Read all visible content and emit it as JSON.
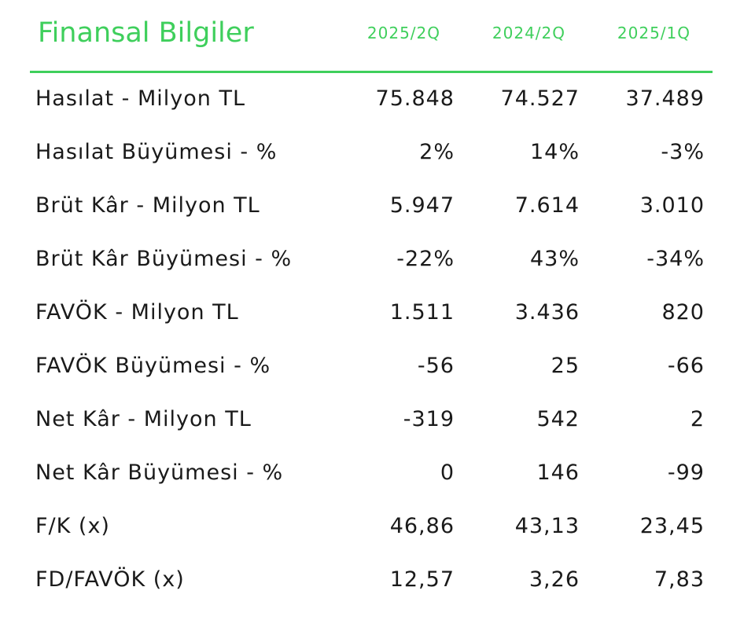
{
  "header": {
    "title": "Finansal Bilgiler",
    "columns": [
      "2025/2Q",
      "2024/2Q",
      "2025/1Q"
    ]
  },
  "table": {
    "rows": [
      [
        "Hasılat - Milyon TL",
        "75.848",
        "74.527",
        "37.489"
      ],
      [
        "Hasılat Büyümesi - %",
        "2%",
        "14%",
        "-3%"
      ],
      [
        "Brüt Kâr - Milyon TL",
        "5.947",
        "7.614",
        "3.010"
      ],
      [
        "Brüt Kâr Büyümesi - %",
        "-22%",
        "43%",
        "-34%"
      ],
      [
        "FAVÖK - Milyon TL",
        "1.511",
        "3.436",
        "820"
      ],
      [
        "FAVÖK Büyümesi - %",
        "-56",
        "25",
        "-66"
      ],
      [
        "Net Kâr - Milyon TL",
        "-319",
        "542",
        "2"
      ],
      [
        "Net Kâr Büyümesi - %",
        "0",
        "146",
        "-99"
      ],
      [
        "F/K (x)",
        "46,86",
        "43,13",
        "23,45"
      ],
      [
        "FD/FAVÖK (x)",
        "12,57",
        "3,26",
        "7,83"
      ]
    ]
  }
}
